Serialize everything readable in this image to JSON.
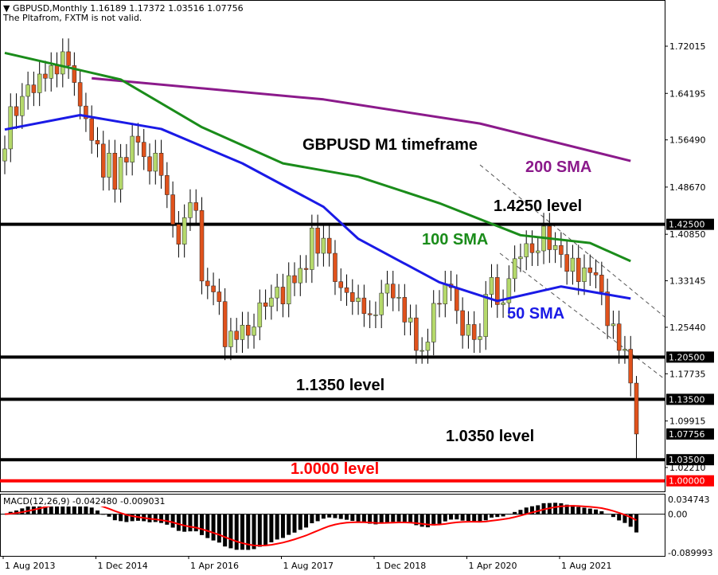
{
  "header": {
    "symbol_line": "GBPUSD,Monthly  1.16189 1.17372 1.03516 1.07756",
    "warning": "The Pltafrom, FXTM is not valid."
  },
  "annotations": {
    "title": "GBPUSD M1 timeframe",
    "sma200": "200 SMA",
    "level_14250": "1.4250 level",
    "sma100": "100 SMA",
    "sma50": "50 SMA",
    "level_11350": "1.1350 level",
    "level_10350": "1.0350 level",
    "level_10000": "1.0000 level"
  },
  "colors": {
    "bull": "#b5d96b",
    "bear": "#e0521c",
    "sma200": "#8b1a8b",
    "sma100": "#1a8c1a",
    "sma50": "#1a1ae6",
    "level": "#000000",
    "parity": "#ff0000",
    "macd_hist": "#000000",
    "macd_signal": "#ff0000"
  },
  "chart_data": [
    {
      "type": "candlestick",
      "timeframe": "Monthly",
      "start": "2013-08",
      "closes": [
        1.55,
        1.62,
        1.605,
        1.637,
        1.656,
        1.643,
        1.674,
        1.667,
        1.688,
        1.674,
        1.711,
        1.688,
        1.66,
        1.621,
        1.6,
        1.564,
        1.558,
        1.503,
        1.543,
        1.483,
        1.536,
        1.528,
        1.571,
        1.561,
        1.537,
        1.513,
        1.543,
        1.506,
        1.474,
        1.425,
        1.392,
        1.436,
        1.461,
        1.448,
        1.331,
        1.323,
        1.313,
        1.297,
        1.222,
        1.248,
        1.234,
        1.258,
        1.241,
        1.255,
        1.295,
        1.289,
        1.303,
        1.321,
        1.293,
        1.34,
        1.328,
        1.352,
        1.35,
        1.419,
        1.377,
        1.402,
        1.377,
        1.33,
        1.32,
        1.312,
        1.297,
        1.303,
        1.277,
        1.275,
        1.275,
        1.311,
        1.326,
        1.303,
        1.304,
        1.263,
        1.27,
        1.216,
        1.216,
        1.23,
        1.294,
        1.293,
        1.326,
        1.32,
        1.282,
        1.241,
        1.259,
        1.234,
        1.239,
        1.309,
        1.337,
        1.292,
        1.295,
        1.335,
        1.368,
        1.371,
        1.393,
        1.378,
        1.381,
        1.422,
        1.383,
        1.39,
        1.375,
        1.347,
        1.369,
        1.33,
        1.353,
        1.345,
        1.341,
        1.313,
        1.257,
        1.26,
        1.216,
        1.218,
        1.162,
        1.07756
      ],
      "last_candle": {
        "open": 1.16189,
        "high": 1.17372,
        "low": 1.03516,
        "close": 1.07756
      },
      "sma": [
        {
          "name": "200 SMA",
          "points": [
            [
              15,
              1.667
            ],
            [
              55,
              1.632
            ],
            [
              82,
              1.592
            ],
            [
              108,
              1.53
            ]
          ]
        },
        {
          "name": "100 SMA",
          "points": [
            [
              0,
              1.709
            ],
            [
              20,
              1.665
            ],
            [
              34,
              1.586
            ],
            [
              48,
              1.526
            ],
            [
              61,
              1.504
            ],
            [
              75,
              1.46
            ],
            [
              89,
              1.407
            ],
            [
              101,
              1.394
            ],
            [
              108,
              1.364
            ]
          ]
        },
        {
          "name": "50 SMA",
          "points": [
            [
              0,
              1.582
            ],
            [
              13,
              1.606
            ],
            [
              27,
              1.583
            ],
            [
              41,
              1.526
            ],
            [
              55,
              1.454
            ],
            [
              61,
              1.401
            ],
            [
              75,
              1.329
            ],
            [
              85,
              1.298
            ],
            [
              96,
              1.322
            ],
            [
              108,
              1.302
            ]
          ]
        }
      ],
      "levels": [
        1.425,
        1.205,
        1.135,
        1.035,
        1.0
      ],
      "y_ticks": [
        "1.72015",
        "1.64195",
        "1.56490",
        "1.48670",
        "1.40850",
        "1.33145",
        "1.25440",
        "1.17735",
        "1.09915",
        "1.02210"
      ],
      "price_labels": [
        "1.42500",
        "1.20500",
        "1.13500",
        "1.07756",
        "1.03500",
        "1.00000"
      ],
      "x_ticks": [
        "1 Aug 2013",
        "1 Dec 2014",
        "1 Apr 2016",
        "1 Aug 2017",
        "1 Dec 2018",
        "1 Apr 2020",
        "1 Aug 2021"
      ]
    },
    {
      "type": "bar",
      "title": "MACD(12,26,9) -0.042480 -0.009031",
      "y_ticks": [
        "0.034743",
        "0.00",
        "-0.089993"
      ],
      "ylim": [
        -0.089993,
        0.034743
      ]
    }
  ]
}
